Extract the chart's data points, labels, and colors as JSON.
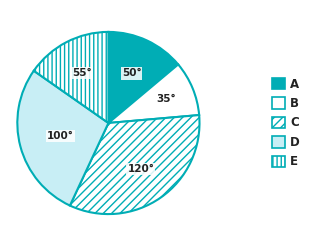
{
  "labels": [
    "A",
    "B",
    "C",
    "D",
    "E"
  ],
  "angles": [
    50,
    35,
    120,
    100,
    55
  ],
  "colors": [
    "#00adb5",
    "#ffffff",
    "#ffffff",
    "#c8eef5",
    "#ffffff"
  ],
  "hatch_patterns": [
    "",
    "",
    "////",
    "",
    "||||"
  ],
  "edge_color": "#00adb5",
  "angle_labels": [
    "50°",
    "35°",
    "120°",
    "100°",
    "55°"
  ],
  "start_angle": 90,
  "background_color": "#ffffff",
  "label_fontsize": 7.5,
  "legend_fontsize": 8.5,
  "teal_color": "#00adb5",
  "light_cyan": "#c8eef5"
}
